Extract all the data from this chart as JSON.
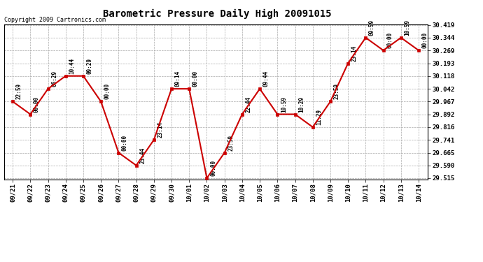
{
  "title": "Barometric Pressure Daily High 20091015",
  "copyright": "Copyright 2009 Cartronics.com",
  "bg_color": "#ffffff",
  "line_color": "#cc0000",
  "marker_color": "#cc0000",
  "grid_color": "#aaaaaa",
  "dates": [
    "09/21",
    "09/22",
    "09/23",
    "09/24",
    "09/25",
    "09/26",
    "09/27",
    "09/28",
    "09/29",
    "09/30",
    "10/01",
    "10/02",
    "10/03",
    "10/04",
    "10/05",
    "10/06",
    "10/07",
    "10/08",
    "10/09",
    "10/10",
    "10/11",
    "10/12",
    "10/13",
    "10/14"
  ],
  "values": [
    29.967,
    29.892,
    30.042,
    30.118,
    30.118,
    29.967,
    29.665,
    29.59,
    29.741,
    30.042,
    30.042,
    29.515,
    29.665,
    29.892,
    30.042,
    29.892,
    29.892,
    29.816,
    29.967,
    30.193,
    30.344,
    30.269,
    30.344,
    30.269
  ],
  "time_labels": [
    "22:59",
    "00:00",
    "06:29",
    "10:44",
    "09:29",
    "00:00",
    "00:00",
    "23:44",
    "23:14",
    "09:14",
    "00:00",
    "00:00",
    "23:59",
    "22:44",
    "09:44",
    "10:59",
    "10:29",
    "11:29",
    "23:59",
    "23:14",
    "09:59",
    "00:00",
    "10:59",
    "00:00"
  ],
  "ylim_min": 29.515,
  "ylim_max": 30.419,
  "yticks": [
    29.515,
    29.59,
    29.665,
    29.741,
    29.816,
    29.892,
    29.967,
    30.042,
    30.118,
    30.193,
    30.269,
    30.344,
    30.419
  ]
}
